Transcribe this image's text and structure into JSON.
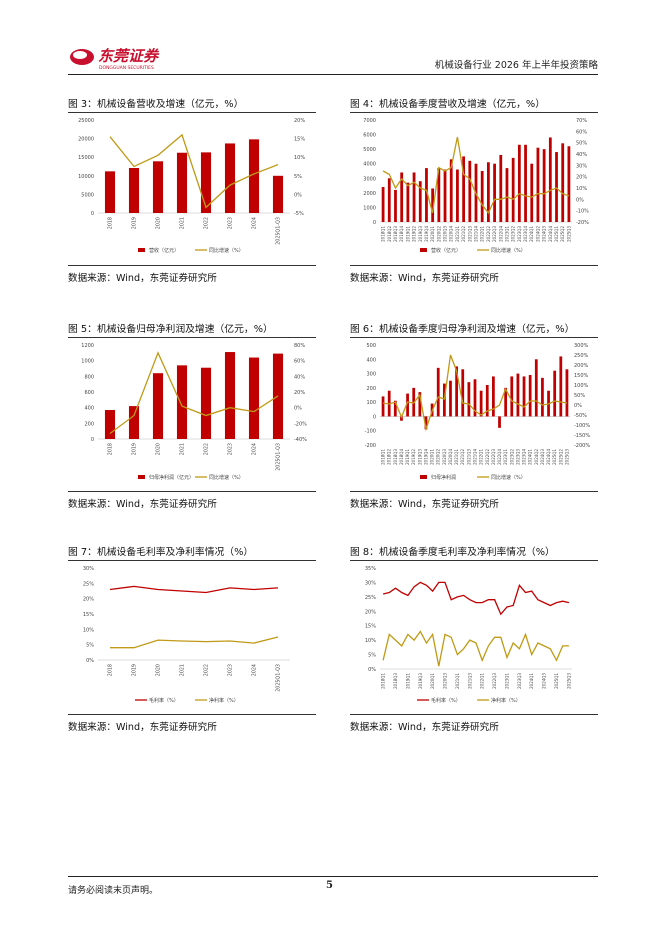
{
  "header": {
    "logo_cn": "东莞证券",
    "logo_en": "DONGGUAN SECURITIES",
    "doc_title": "机械设备行业 2026 年上半年投资策略"
  },
  "footer": {
    "disclaimer": "请务必阅读末页声明。",
    "page": "5"
  },
  "colors": {
    "bar": "#C00000",
    "line": "#C09A16",
    "brand": "#C8102E"
  },
  "figures": [
    {
      "title": "图 3：机械设备营收及增速（亿元，%）",
      "source": "数据来源：Wind，东莞证券研究所",
      "legend": [
        "营收（亿元）",
        "同比增速（%）"
      ],
      "chart_data": {
        "type": "bar",
        "categories": [
          "2018",
          "2019",
          "2020",
          "2021",
          "2022",
          "2023",
          "2024",
          "2025Q1-Q3"
        ],
        "left_ticks": [
          "25000",
          "20000",
          "15000",
          "10000",
          "5000",
          "0"
        ],
        "right_ticks": [
          "20%",
          "15%",
          "10%",
          "5%",
          "0%",
          "-5%"
        ],
        "ylim": [
          0,
          25000
        ],
        "y2lim": [
          -5,
          20
        ],
        "series": [
          {
            "name": "营收（亿元）",
            "kind": "bar",
            "axis": "left",
            "values": [
              11200,
              12100,
              13900,
              16200,
              16300,
              18700,
              19800,
              10000
            ]
          },
          {
            "name": "同比增速（%）",
            "kind": "line",
            "axis": "right",
            "values": [
              15.5,
              7.5,
              10.5,
              16.0,
              -3.5,
              2.5,
              5.5,
              8.0
            ]
          }
        ]
      }
    },
    {
      "title": "图 4：机械设备季度营收及增速（亿元，%）",
      "source": "数据来源：Wind，东莞证券研究所",
      "legend": [
        "营收（亿元）",
        "同比增速（%）"
      ],
      "chart_data": {
        "type": "bar",
        "categories": [
          "2018Q1",
          "2018Q2",
          "2018Q3",
          "2018Q4",
          "2019Q1",
          "2019Q2",
          "2019Q3",
          "2019Q4",
          "2020Q1",
          "2020Q2",
          "2020Q3",
          "2020Q4",
          "2021Q1",
          "2021Q2",
          "2021Q3",
          "2021Q4",
          "2022Q1",
          "2022Q2",
          "2022Q3",
          "2022Q4",
          "2023Q1",
          "2023Q2",
          "2023Q3",
          "2023Q4",
          "2024Q1",
          "2024Q2",
          "2024Q3",
          "2024Q4",
          "2025Q1",
          "2025Q2",
          "2025Q3"
        ],
        "x_ticks": [
          "2018Q1",
          "2018Q2",
          "2018Q3",
          "2018Q4",
          "2019Q1",
          "2019Q2",
          "2019Q3",
          "2019Q4",
          "2020Q1",
          "2020Q2",
          "2020Q3",
          "2020Q4",
          "2021Q1",
          "2021Q2",
          "2021Q3",
          "2021Q4",
          "2022Q1",
          "2022Q2",
          "2022Q3",
          "2022Q4",
          "2023Q1",
          "2023Q2",
          "2023Q3",
          "2023Q4",
          "2024Q1",
          "2024Q2",
          "2024Q3",
          "2024Q4",
          "2025Q1",
          "2025Q2",
          "2025Q3"
        ],
        "left_ticks": [
          "7000",
          "6000",
          "5000",
          "4000",
          "3000",
          "2000",
          "1000",
          "0"
        ],
        "right_ticks": [
          "70%",
          "60%",
          "50%",
          "40%",
          "30%",
          "20%",
          "10%",
          "0%",
          "-10%",
          "-20%"
        ],
        "ylim": [
          0,
          7000
        ],
        "y2lim": [
          -20,
          70
        ],
        "series": [
          {
            "name": "营收（亿元）",
            "kind": "bar",
            "axis": "left",
            "values": [
              2400,
              3000,
              2200,
              3400,
              2700,
              3400,
              2800,
              3700,
              2300,
              3700,
              3600,
              4300,
              3600,
              4500,
              4200,
              4000,
              3500,
              4100,
              4000,
              4600,
              3700,
              4400,
              5300,
              5300,
              4000,
              5100,
              5000,
              5800,
              4800,
              5400,
              5200
            ]
          },
          {
            "name": "同比增速（%）",
            "kind": "line",
            "axis": "right",
            "values": [
              25,
              22,
              10,
              18,
              12,
              15,
              10,
              8,
              -12,
              28,
              25,
              28,
              55,
              22,
              18,
              5,
              -5,
              -12,
              0,
              0,
              2,
              0,
              5,
              3,
              2,
              5,
              5,
              8,
              10,
              5,
              3
            ]
          }
        ]
      }
    },
    {
      "title": "图 5：机械设备归母净利润及增速（亿元，%）",
      "source": "数据来源：Wind，东莞证券研究所",
      "legend": [
        "归母净利润（亿元）",
        "同比增速（%）"
      ],
      "chart_data": {
        "type": "bar",
        "categories": [
          "2018",
          "2019",
          "2020",
          "2021",
          "2022",
          "2023",
          "2024",
          "2025Q1-Q3"
        ],
        "left_ticks": [
          "1200",
          "1000",
          "800",
          "600",
          "400",
          "200",
          "0"
        ],
        "right_ticks": [
          "80%",
          "60%",
          "40%",
          "20%",
          "0%",
          "-20%",
          "-40%"
        ],
        "ylim": [
          0,
          1200
        ],
        "y2lim": [
          -40,
          80
        ],
        "series": [
          {
            "name": "归母净利润（亿元）",
            "kind": "bar",
            "axis": "left",
            "values": [
              370,
              420,
              840,
              940,
              910,
              1110,
              1040,
              1090
            ]
          },
          {
            "name": "同比增速（%）",
            "kind": "line",
            "axis": "right",
            "values": [
              -33,
              -10,
              70,
              2,
              -10,
              0,
              -5,
              15
            ]
          }
        ]
      }
    },
    {
      "title": "图 6：机械设备季度归母净利润及增速（亿元，%）",
      "source": "数据来源：Wind，东莞证券研究所",
      "legend": [
        "归母净利润",
        "同比增速（%）"
      ],
      "chart_data": {
        "type": "bar",
        "categories": [
          "2018Q1",
          "2018Q2",
          "2018Q3",
          "2018Q4",
          "2019Q1",
          "2019Q2",
          "2019Q3",
          "2019Q4",
          "2020Q1",
          "2020Q2",
          "2020Q3",
          "2020Q4",
          "2021Q1",
          "2021Q2",
          "2021Q3",
          "2021Q4",
          "2022Q1",
          "2022Q2",
          "2022Q3",
          "2022Q4",
          "2023Q1",
          "2023Q2",
          "2023Q3",
          "2023Q4",
          "2024Q1",
          "2024Q2",
          "2024Q3",
          "2024Q4",
          "2025Q1",
          "2025Q2",
          "2025Q3"
        ],
        "x_ticks": [
          "2018Q1",
          "2018Q2",
          "2018Q3",
          "2018Q4",
          "2019Q1",
          "2019Q2",
          "2019Q3",
          "2019Q4",
          "2020Q1",
          "2020Q2",
          "2020Q3",
          "2020Q4",
          "2021Q1",
          "2021Q2",
          "2021Q3",
          "2021Q4",
          "2022Q1",
          "2022Q2",
          "2022Q3",
          "2022Q4",
          "2023Q1",
          "2023Q2",
          "2023Q3",
          "2023Q4",
          "2024Q1",
          "2024Q2",
          "2024Q3",
          "2024Q4",
          "2025Q1",
          "2025Q2",
          "2025Q3"
        ],
        "left_ticks": [
          "500",
          "400",
          "300",
          "200",
          "100",
          "0",
          "-100",
          "-200"
        ],
        "right_ticks": [
          "300%",
          "250%",
          "200%",
          "150%",
          "100%",
          "50%",
          "0%",
          "-50%",
          "-100%",
          "-150%",
          "-200%"
        ],
        "ylim": [
          -200,
          500
        ],
        "y2lim": [
          -200,
          300
        ],
        "series": [
          {
            "name": "归母净利润",
            "kind": "bar",
            "axis": "left",
            "values": [
              140,
              180,
              110,
              -30,
              160,
              200,
              170,
              -90,
              90,
              340,
              230,
              250,
              350,
              330,
              240,
              260,
              180,
              220,
              280,
              -80,
              200,
              280,
              300,
              280,
              290,
              400,
              270,
              180,
              320,
              420,
              330
            ]
          },
          {
            "name": "同比增速（%）",
            "kind": "line",
            "axis": "right",
            "values": [
              10,
              5,
              15,
              -60,
              15,
              10,
              50,
              -120,
              -30,
              40,
              30,
              250,
              170,
              10,
              5,
              -30,
              -50,
              -30,
              -20,
              0,
              80,
              20,
              5,
              -10,
              20,
              20,
              0,
              5,
              20,
              15,
              10
            ]
          }
        ]
      }
    },
    {
      "title": "图 7：机械设备毛利率及净利率情况（%）",
      "source": "数据来源：Wind，东莞证券研究所",
      "legend": [
        "毛利率（%）",
        "净利率（%）"
      ],
      "chart_data": {
        "type": "line",
        "categories": [
          "2018",
          "2019",
          "2020",
          "2021",
          "2022",
          "2023",
          "2024",
          "2025Q1-Q3"
        ],
        "left_ticks": [
          "30%",
          "25%",
          "20%",
          "15%",
          "10%",
          "5%",
          "0%"
        ],
        "ylim": [
          0,
          30
        ],
        "series": [
          {
            "name": "毛利率（%）",
            "color": "#C00000",
            "values": [
              23,
              24,
              23,
              22.5,
              22,
              23.5,
              23,
              23.5
            ]
          },
          {
            "name": "净利率（%）",
            "color": "#C09A16",
            "values": [
              4,
              4,
              6.5,
              6.2,
              6,
              6.2,
              5.5,
              7.5
            ]
          }
        ]
      }
    },
    {
      "title": "图 8：机械设备季度毛利率及净利率情况（%）",
      "source": "数据来源：Wind，东莞证券研究所",
      "legend": [
        "毛利率（%）",
        "净利率（%）"
      ],
      "chart_data": {
        "type": "line",
        "categories": [
          "2018Q1",
          "2018Q2",
          "2018Q3",
          "2018Q4",
          "2019Q1",
          "2019Q2",
          "2019Q3",
          "2019Q4",
          "2020Q1",
          "2020Q2",
          "2020Q3",
          "2020Q4",
          "2021Q1",
          "2021Q2",
          "2021Q3",
          "2021Q4",
          "2022Q1",
          "2022Q2",
          "2022Q3",
          "2022Q4",
          "2023Q1",
          "2023Q2",
          "2023Q3",
          "2023Q4",
          "2024Q1",
          "2024Q2",
          "2024Q3",
          "2024Q4",
          "2025Q1",
          "2025Q2",
          "2025Q3"
        ],
        "x_ticks": [
          "2018Q1",
          "",
          "2018Q3",
          "",
          "2019Q1",
          "",
          "2019Q3",
          "",
          "2020Q1",
          "",
          "2020Q3",
          "",
          "2021Q1",
          "",
          "2021Q3",
          "",
          "2022Q1",
          "",
          "2022Q3",
          "",
          "2023Q1",
          "",
          "2023Q3",
          "",
          "2024Q1",
          "",
          "2024Q3",
          "",
          "2025Q1",
          "",
          "2025Q3"
        ],
        "left_ticks": [
          "35%",
          "30%",
          "25%",
          "20%",
          "15%",
          "10%",
          "5%",
          "0%"
        ],
        "ylim": [
          0,
          35
        ],
        "series": [
          {
            "name": "毛利率（%）",
            "color": "#C00000",
            "values": [
              26,
              26.5,
              28,
              26.5,
              25.5,
              28.5,
              30,
              29,
              27,
              30,
              30,
              24,
              25,
              25.5,
              24,
              23,
              23,
              24,
              24,
              19,
              21.5,
              22,
              29,
              26.5,
              27,
              24,
              23,
              22,
              23,
              23.5,
              23
            ]
          },
          {
            "name": "净利率（%）",
            "color": "#C09A16",
            "values": [
              3,
              12,
              10,
              8,
              12,
              10,
              13,
              9,
              12,
              1,
              12,
              11,
              5,
              7,
              10,
              9,
              3,
              8,
              11,
              11,
              4,
              9,
              7,
              12,
              5,
              9,
              8,
              7,
              3,
              8,
              8
            ]
          }
        ]
      }
    }
  ]
}
